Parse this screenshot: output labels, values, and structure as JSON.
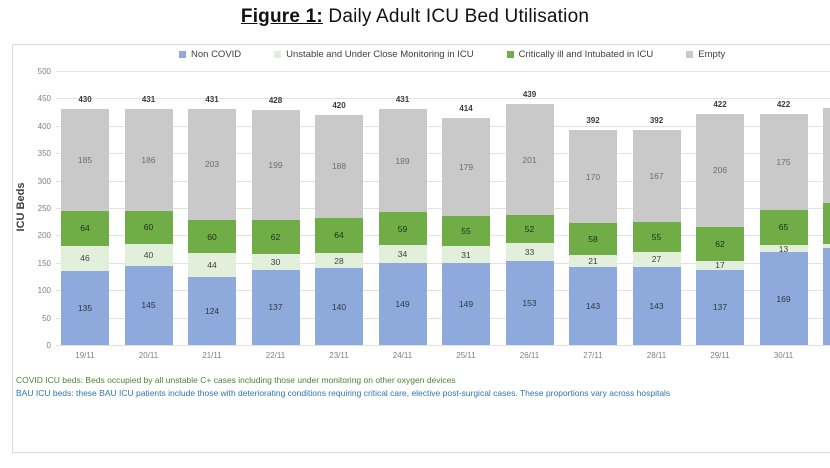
{
  "title": {
    "prefix": "Figure 1:",
    "rest": " Daily Adult ICU Bed Utilisation"
  },
  "legend": [
    {
      "label": "Non COVID",
      "color": "#8EA9DB"
    },
    {
      "label": "Unstable and Under Close Monitoring in ICU",
      "color": "#E2EFDA"
    },
    {
      "label": "Critically ill and Intubated in ICU",
      "color": "#70AD47"
    },
    {
      "label": "Empty",
      "color": "#C9C9C9"
    }
  ],
  "chart_data": {
    "type": "bar",
    "stacked": true,
    "title": "Daily Adult ICU Bed Utilisation",
    "ylabel": "ICU Beds",
    "ylim": [
      0,
      500
    ],
    "ytick_step": 50,
    "grid": true,
    "legend_position": "top",
    "categories": [
      "19/11",
      "20/11",
      "21/11",
      "22/11",
      "23/11",
      "24/11",
      "25/11",
      "26/11",
      "27/11",
      "28/11",
      "29/11",
      "30/11"
    ],
    "series": [
      {
        "name": "Non COVID",
        "color": "#8EA9DB",
        "label_color": "#33373f",
        "values": [
          135,
          145,
          124,
          137,
          140,
          149,
          149,
          153,
          143,
          143,
          137,
          169
        ]
      },
      {
        "name": "Unstable and Under Close Monitoring in ICU",
        "color": "#E2EFDA",
        "label_color": "#404040",
        "values": [
          46,
          40,
          44,
          30,
          28,
          34,
          31,
          33,
          21,
          27,
          17,
          13
        ]
      },
      {
        "name": "Critically ill and Intubated in ICU",
        "color": "#70AD47",
        "label_color": "#21301a",
        "values": [
          64,
          60,
          60,
          62,
          64,
          59,
          55,
          52,
          58,
          55,
          62,
          65
        ]
      },
      {
        "name": "Empty",
        "color": "#C9C9C9",
        "label_color": "#6e6e6e",
        "values": [
          185,
          186,
          203,
          199,
          188,
          189,
          179,
          201,
          170,
          167,
          206,
          175
        ]
      }
    ],
    "totals": [
      430,
      431,
      431,
      428,
      420,
      431,
      414,
      439,
      392,
      392,
      422,
      422
    ],
    "partial_bar_clipped_at_right_edge": {
      "estimated": true,
      "values": [
        177,
        8,
        75,
        172
      ]
    }
  },
  "footnotes": [
    {
      "text": "COVID ICU beds: Beds occupied by all unstable C+ cases including those under monitoring on other oxygen devices",
      "color": "#538135"
    },
    {
      "text": "BAU ICU beds: these BAU ICU patients include those with deteriorating conditions requiring critical care, elective post-surgical cases. These proportions vary across hospitals",
      "color": "#2E75B6"
    }
  ]
}
